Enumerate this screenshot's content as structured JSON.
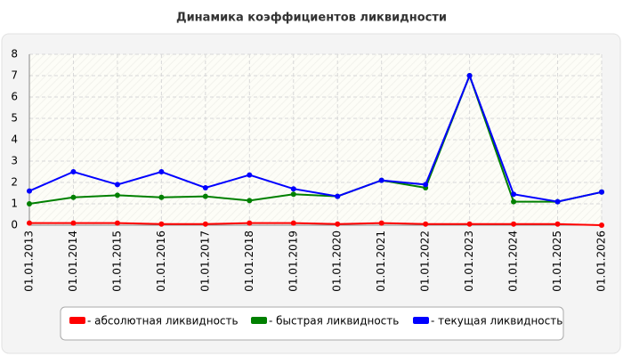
{
  "chart_data": {
    "type": "line",
    "title": "Динамика коэффициентов ликвидности",
    "categories": [
      "01.01.2013",
      "01.01.2014",
      "01.01.2015",
      "01.01.2016",
      "01.01.2017",
      "01.01.2018",
      "01.01.2019",
      "01.01.2020",
      "01.01.2021",
      "01.01.2022",
      "01.01.2023",
      "01.01.2024",
      "01.01.2025",
      "01.01.2026"
    ],
    "series": [
      {
        "name": "- абсолютная ликвидность",
        "color": "#ff0000",
        "values": [
          0.1,
          0.1,
          0.1,
          0.05,
          0.05,
          0.1,
          0.1,
          0.05,
          0.1,
          0.05,
          0.05,
          0.05,
          0.05,
          0.0
        ]
      },
      {
        "name": "- быстрая ликвидность",
        "color": "#008000",
        "values": [
          1.0,
          1.3,
          1.4,
          1.3,
          1.35,
          1.15,
          1.45,
          1.35,
          2.1,
          1.75,
          7.0,
          1.1,
          1.1,
          1.55
        ]
      },
      {
        "name": "- текущая ликвидность",
        "color": "#0000ff",
        "values": [
          1.6,
          2.5,
          1.9,
          2.5,
          1.75,
          2.35,
          1.7,
          1.35,
          2.1,
          1.9,
          7.0,
          1.45,
          1.1,
          1.55
        ]
      }
    ],
    "ylim": [
      0,
      8
    ],
    "yticks": [
      0,
      1,
      2,
      3,
      4,
      5,
      6,
      7,
      8
    ],
    "grid": true
  }
}
